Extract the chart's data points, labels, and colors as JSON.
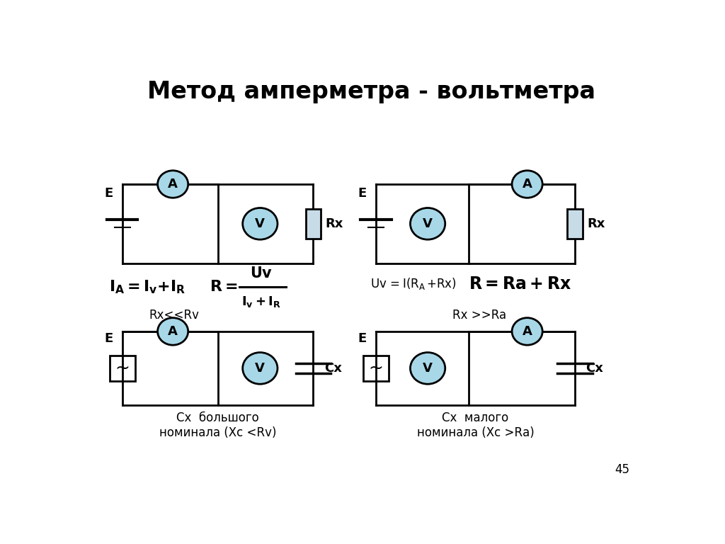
{
  "title": "Метод амперметра - вольтметра",
  "title_fontsize": 24,
  "bg_color": "#ffffff",
  "circuit_color": "#000000",
  "instrument_fill": "#a8d8e8",
  "instrument_edge": "#000000",
  "resistor_fill": "#c8dce8",
  "page_number": "45",
  "caption_bl": "Cx  большого\nноминала (Xc <Rv)",
  "caption_br": "Cx  малого\nноминала (Xc >Rа)"
}
